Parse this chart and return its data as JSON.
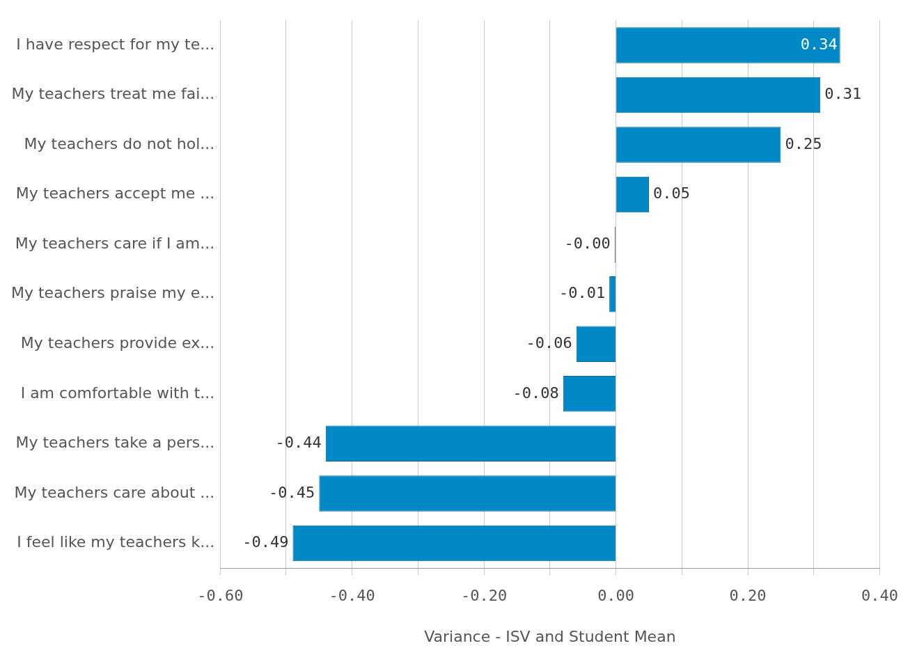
{
  "chart_data": {
    "type": "bar",
    "orientation": "horizontal",
    "xlabel": "Variance - ISV and Student Mean",
    "categories": [
      "I have respect for my te...",
      "My teachers treat me fai...",
      "My teachers do not hol...",
      "My teachers accept me ...",
      "My teachers care if I am...",
      "My teachers praise my e...",
      "My teachers provide ex...",
      "I am comfortable with t...",
      "My teachers take a pers...",
      "My teachers care about ...",
      "I feel like my teachers k..."
    ],
    "values": [
      0.34,
      0.31,
      0.25,
      0.05,
      -0.002,
      -0.01,
      -0.06,
      -0.08,
      -0.44,
      -0.45,
      -0.49
    ],
    "value_labels": [
      "0.34",
      "0.31",
      "0.25",
      "0.05",
      "-0.00",
      "-0.01",
      "-0.06",
      "-0.08",
      "-0.44",
      "-0.45",
      "-0.49"
    ],
    "color": "#0089c6",
    "xlim": [
      -0.6,
      0.4
    ],
    "xticks": [
      {
        "value": -0.6,
        "label": "-0.60"
      },
      {
        "value": -0.5,
        "label": null
      },
      {
        "value": -0.4,
        "label": "-0.40"
      },
      {
        "value": -0.3,
        "label": null
      },
      {
        "value": -0.2,
        "label": "-0.20"
      },
      {
        "value": -0.1,
        "label": null
      },
      {
        "value": 0,
        "label": "0.00"
      },
      {
        "value": 0.1,
        "label": null
      },
      {
        "value": 0.2,
        "label": "0.20"
      },
      {
        "value": 0.3,
        "label": null
      },
      {
        "value": 0.4,
        "label": "0.40"
      }
    ],
    "grid": "x",
    "legend": false
  }
}
